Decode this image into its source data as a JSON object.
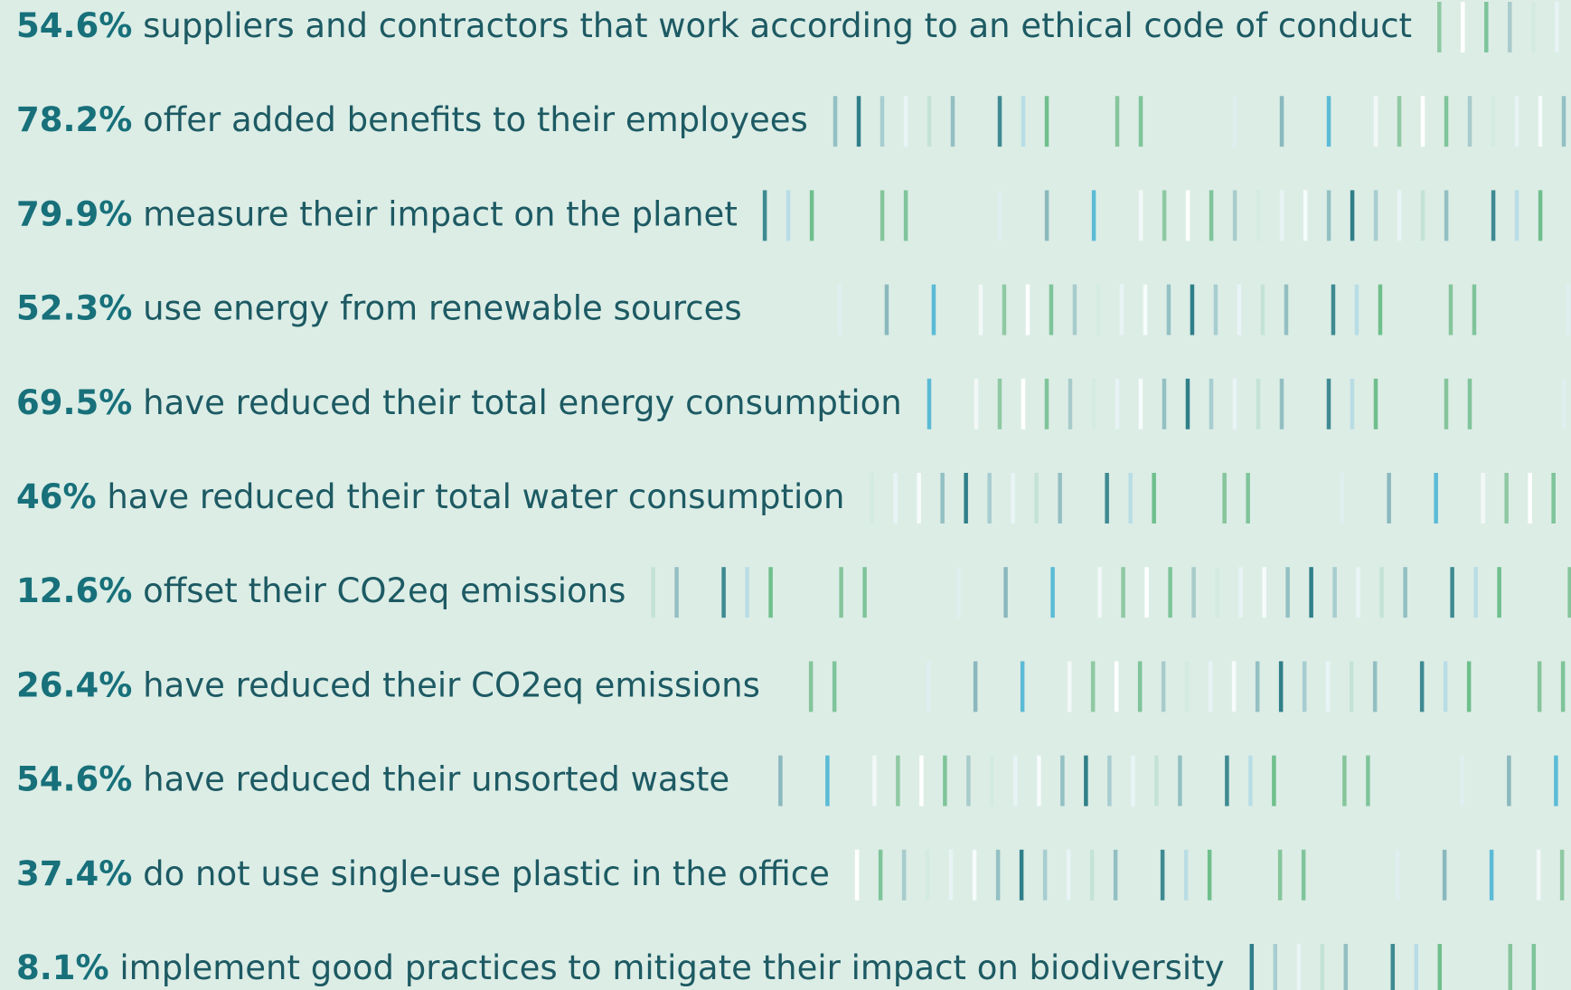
{
  "items": [
    {
      "percent": "54.6%",
      "text": "suppliers and contractors that work according to an ethical code of conduct"
    },
    {
      "percent": "78.2%",
      "text": "offer added benefits to their employees"
    },
    {
      "percent": "79.9%",
      "text": "measure their impact on the planet"
    },
    {
      "percent": "52.3%",
      "text": "use energy from renewable sources"
    },
    {
      "percent": "69.5%",
      "text": "have reduced their total energy consumption"
    },
    {
      "percent": "46%",
      "text": "have reduced their total water consumption"
    },
    {
      "percent": "12.6%",
      "text": "offset their CO2eq emissions"
    },
    {
      "percent": "26.4%",
      "text": "have reduced their CO2eq emissions"
    },
    {
      "percent": "54.6%",
      "text": "have reduced their unsorted waste"
    },
    {
      "percent": "37.4%",
      "text": "do not use single-use plastic in the office"
    },
    {
      "percent": "8.1%",
      "text": "implement good practices to mitigate their impact on biodiversity"
    }
  ]
}
